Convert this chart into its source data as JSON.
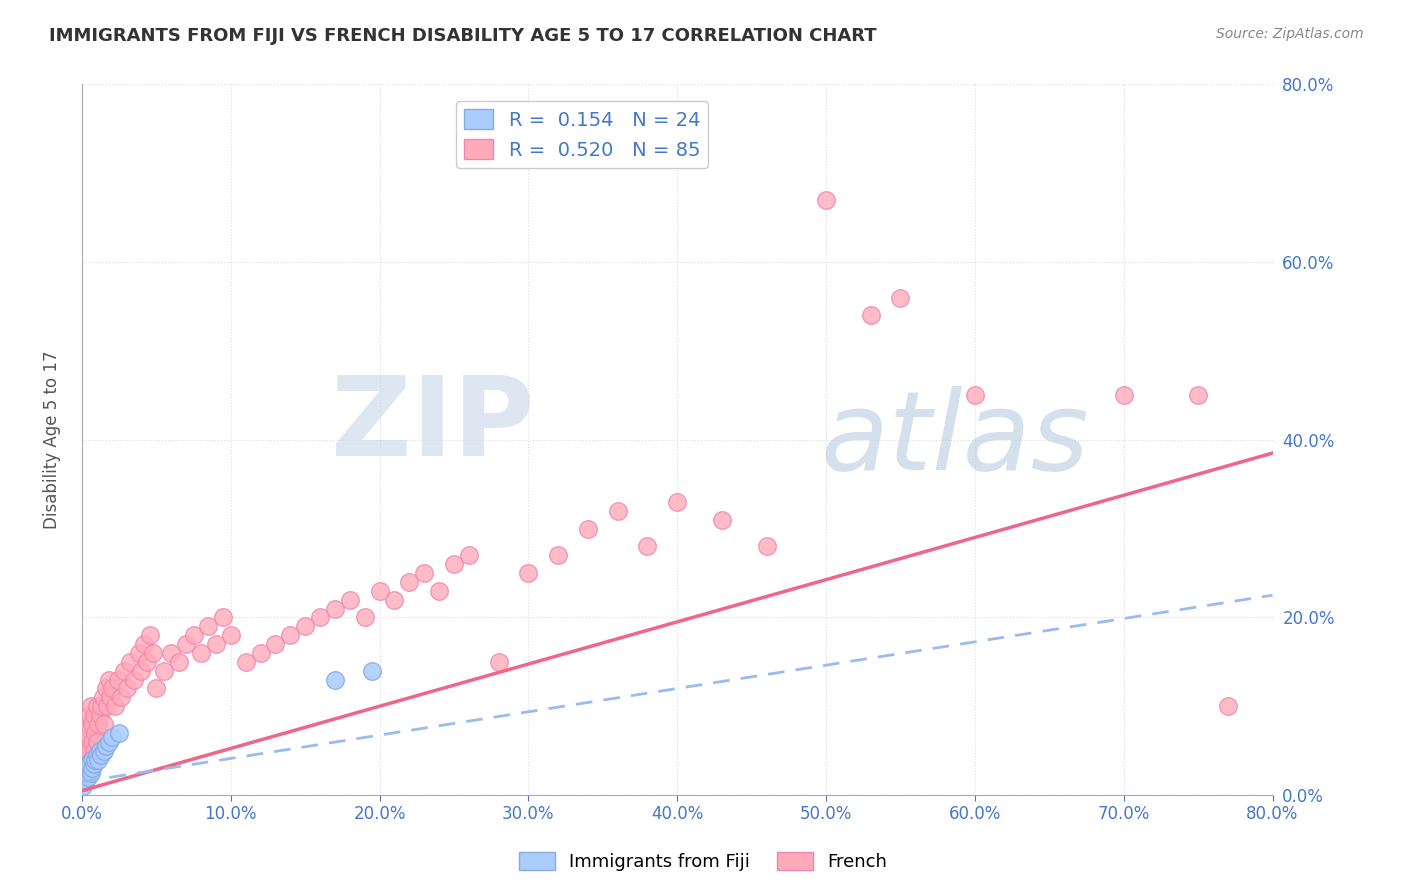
{
  "title": "IMMIGRANTS FROM FIJI VS FRENCH DISABILITY AGE 5 TO 17 CORRELATION CHART",
  "source": "Source: ZipAtlas.com",
  "ylabel": "Disability Age 5 to 17",
  "xlim": [
    0.0,
    0.8
  ],
  "ylim": [
    0.0,
    0.8
  ],
  "yticks": [
    0.0,
    0.2,
    0.4,
    0.6,
    0.8
  ],
  "xticks": [
    0.0,
    0.1,
    0.2,
    0.3,
    0.4,
    0.5,
    0.6,
    0.7,
    0.8
  ],
  "fiji_color": "#aaccff",
  "french_color": "#ffaabb",
  "fiji_edge_color": "#88aadd",
  "french_edge_color": "#ee88aa",
  "trend_fiji_color": "#99bbee",
  "trend_french_color": "#ee6688",
  "R_fiji": 0.154,
  "N_fiji": 24,
  "R_french": 0.52,
  "N_french": 85,
  "fiji_points_x": [
    0.001,
    0.002,
    0.002,
    0.003,
    0.003,
    0.004,
    0.005,
    0.005,
    0.006,
    0.007,
    0.007,
    0.008,
    0.009,
    0.01,
    0.011,
    0.012,
    0.013,
    0.015,
    0.016,
    0.018,
    0.02,
    0.025,
    0.17,
    0.195
  ],
  "fiji_points_y": [
    0.01,
    0.02,
    0.015,
    0.025,
    0.03,
    0.02,
    0.03,
    0.035,
    0.025,
    0.03,
    0.04,
    0.035,
    0.04,
    0.045,
    0.04,
    0.05,
    0.045,
    0.05,
    0.055,
    0.06,
    0.065,
    0.07,
    0.13,
    0.14
  ],
  "french_points_x": [
    0.001,
    0.001,
    0.002,
    0.002,
    0.003,
    0.003,
    0.004,
    0.004,
    0.005,
    0.005,
    0.006,
    0.006,
    0.007,
    0.007,
    0.008,
    0.008,
    0.009,
    0.01,
    0.01,
    0.011,
    0.012,
    0.013,
    0.014,
    0.015,
    0.016,
    0.017,
    0.018,
    0.019,
    0.02,
    0.022,
    0.024,
    0.026,
    0.028,
    0.03,
    0.032,
    0.035,
    0.038,
    0.04,
    0.042,
    0.044,
    0.046,
    0.048,
    0.05,
    0.055,
    0.06,
    0.065,
    0.07,
    0.075,
    0.08,
    0.085,
    0.09,
    0.095,
    0.1,
    0.11,
    0.12,
    0.13,
    0.14,
    0.15,
    0.16,
    0.17,
    0.18,
    0.19,
    0.2,
    0.21,
    0.22,
    0.23,
    0.24,
    0.25,
    0.26,
    0.28,
    0.3,
    0.32,
    0.34,
    0.36,
    0.38,
    0.4,
    0.43,
    0.46,
    0.5,
    0.53,
    0.55,
    0.6,
    0.7,
    0.75,
    0.77
  ],
  "french_points_y": [
    0.03,
    0.05,
    0.02,
    0.06,
    0.04,
    0.07,
    0.03,
    0.08,
    0.05,
    0.09,
    0.04,
    0.1,
    0.06,
    0.08,
    0.05,
    0.09,
    0.07,
    0.06,
    0.1,
    0.08,
    0.09,
    0.1,
    0.11,
    0.08,
    0.12,
    0.1,
    0.13,
    0.11,
    0.12,
    0.1,
    0.13,
    0.11,
    0.14,
    0.12,
    0.15,
    0.13,
    0.16,
    0.14,
    0.17,
    0.15,
    0.18,
    0.16,
    0.12,
    0.14,
    0.16,
    0.15,
    0.17,
    0.18,
    0.16,
    0.19,
    0.17,
    0.2,
    0.18,
    0.15,
    0.16,
    0.17,
    0.18,
    0.19,
    0.2,
    0.21,
    0.22,
    0.2,
    0.23,
    0.22,
    0.24,
    0.25,
    0.23,
    0.26,
    0.27,
    0.15,
    0.25,
    0.27,
    0.3,
    0.32,
    0.28,
    0.33,
    0.31,
    0.28,
    0.67,
    0.54,
    0.56,
    0.45,
    0.45,
    0.45,
    0.1
  ],
  "french_line_x0": 0.0,
  "french_line_y0": 0.005,
  "french_line_x1": 0.8,
  "french_line_y1": 0.385,
  "fiji_line_x0": 0.0,
  "fiji_line_y0": 0.015,
  "fiji_line_x1": 0.8,
  "fiji_line_y1": 0.225,
  "background_color": "#ffffff",
  "grid_color": "#cccccc",
  "axis_label_color": "#4477cc",
  "title_color": "#333333",
  "watermark_zip": "ZIP",
  "watermark_atlas": "atlas",
  "watermark_color_zip": "#c8d8e8",
  "watermark_color_atlas": "#b8cce0",
  "watermark_alpha": 0.6
}
